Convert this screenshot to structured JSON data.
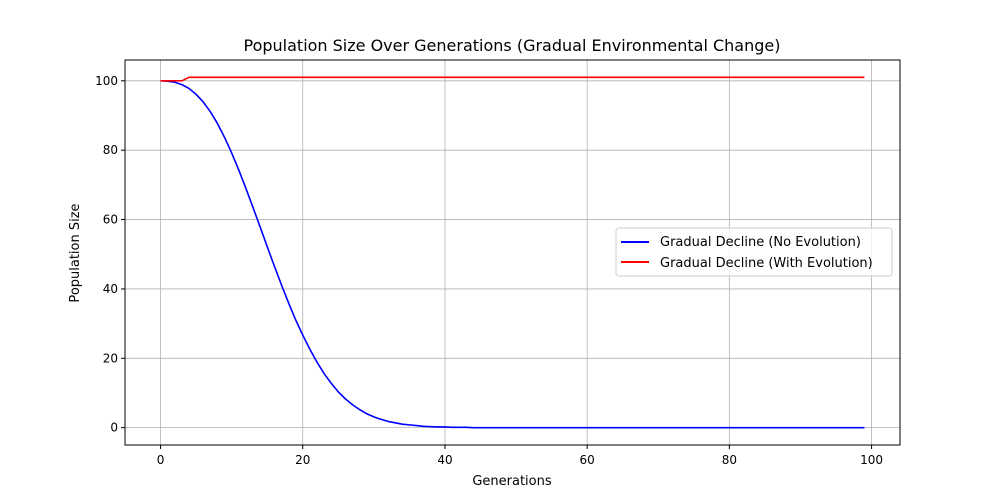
{
  "chart_data": {
    "type": "line",
    "title": "Population Size Over Generations (Gradual Environmental Change)",
    "xlabel": "Generations",
    "ylabel": "Population Size",
    "xlim": [
      -5,
      104
    ],
    "ylim": [
      -5,
      106
    ],
    "xticks": [
      0,
      20,
      40,
      60,
      80,
      100
    ],
    "yticks": [
      0,
      20,
      40,
      60,
      80,
      100
    ],
    "grid": true,
    "legend_position": "center-right",
    "series": [
      {
        "name": "Gradual Decline (No Evolution)",
        "color": "#0000ff",
        "x": [
          0,
          1,
          2,
          3,
          4,
          5,
          6,
          7,
          8,
          9,
          10,
          11,
          12,
          13,
          14,
          15,
          16,
          17,
          18,
          19,
          20,
          21,
          22,
          23,
          24,
          25,
          26,
          27,
          28,
          29,
          30,
          31,
          32,
          33,
          34,
          35,
          36,
          37,
          38,
          39,
          40,
          41,
          42,
          43,
          44,
          45,
          46,
          47,
          48,
          49,
          50,
          51,
          52,
          53,
          54,
          55,
          56,
          57,
          58,
          59,
          60,
          61,
          62,
          63,
          64,
          65,
          66,
          67,
          68,
          69,
          70,
          71,
          72,
          73,
          74,
          75,
          76,
          77,
          78,
          79,
          80,
          81,
          82,
          83,
          84,
          85,
          86,
          87,
          88,
          89,
          90,
          91,
          92,
          93,
          94,
          95,
          96,
          97,
          98,
          99
        ],
        "y": [
          100,
          99.9,
          99.6,
          98.9,
          97.8,
          96.1,
          93.9,
          91.1,
          87.7,
          83.7,
          79.2,
          74.3,
          69.0,
          63.5,
          57.9,
          52.2,
          46.6,
          41.2,
          36.0,
          31.1,
          26.7,
          22.6,
          18.9,
          15.6,
          12.8,
          10.3,
          8.3,
          6.6,
          5.2,
          4.0,
          3.1,
          2.4,
          1.8,
          1.4,
          1.0,
          0.8,
          0.6,
          0.4,
          0.3,
          0.2,
          0.2,
          0.1,
          0.1,
          0.1,
          0,
          0,
          0,
          0,
          0,
          0,
          0,
          0,
          0,
          0,
          0,
          0,
          0,
          0,
          0,
          0,
          0,
          0,
          0,
          0,
          0,
          0,
          0,
          0,
          0,
          0,
          0,
          0,
          0,
          0,
          0,
          0,
          0,
          0,
          0,
          0,
          0,
          0,
          0,
          0,
          0,
          0,
          0,
          0,
          0,
          0,
          0,
          0,
          0,
          0,
          0,
          0,
          0,
          0,
          0,
          0
        ]
      },
      {
        "name": "Gradual Decline (With Evolution)",
        "color": "#ff0000",
        "x": [
          0,
          1,
          2,
          3,
          4,
          99
        ],
        "y": [
          100,
          100,
          100,
          100,
          101,
          101
        ]
      }
    ]
  }
}
